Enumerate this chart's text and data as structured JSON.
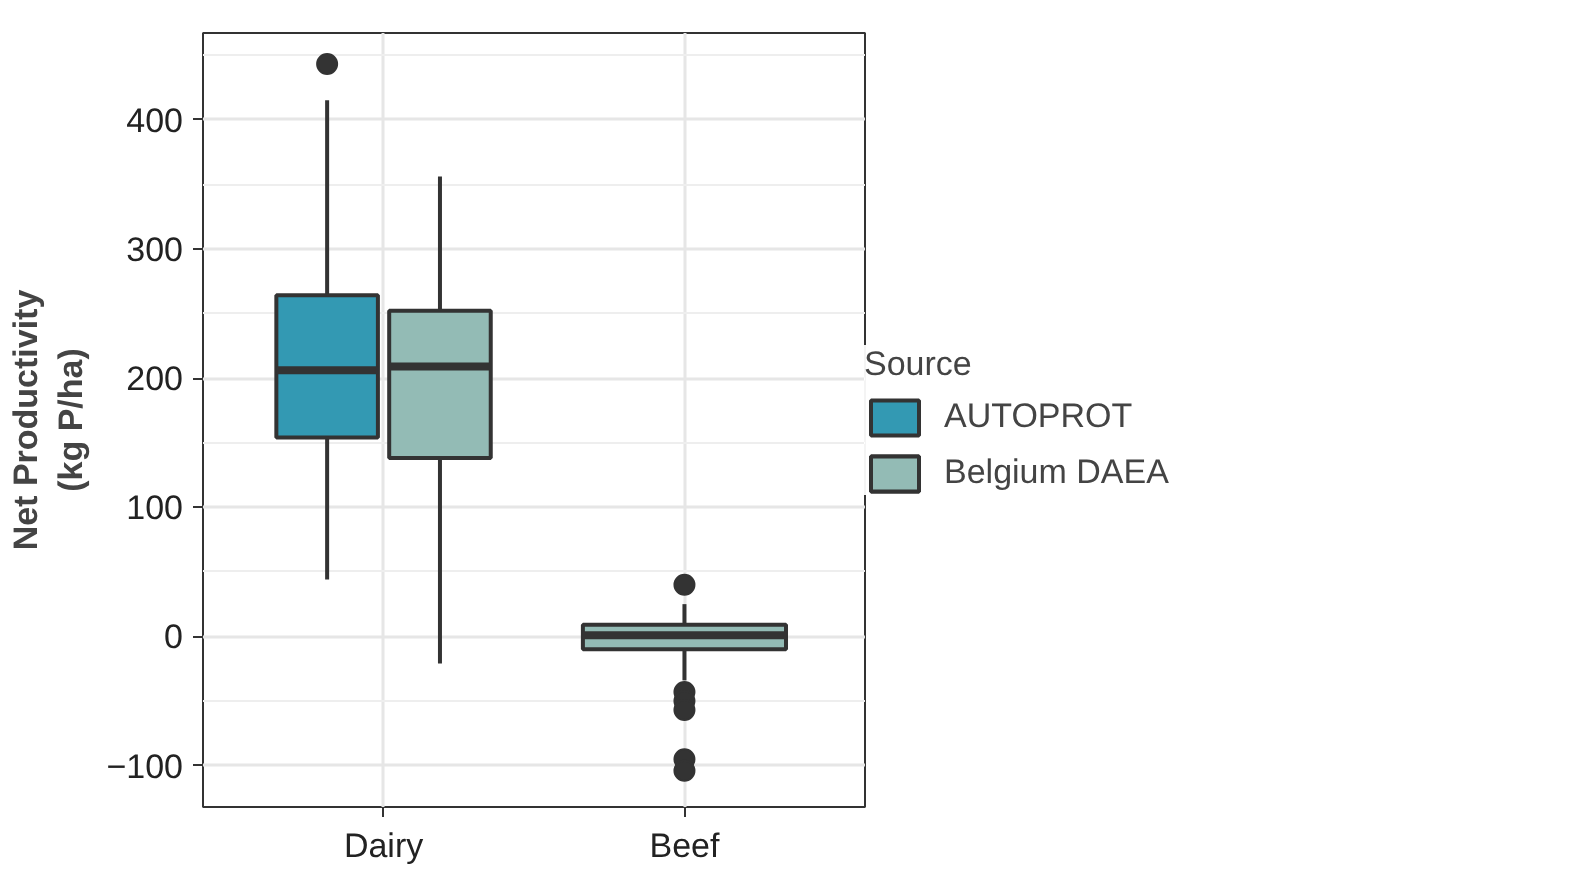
{
  "chart_data": {
    "type": "box",
    "ylabel": "Net Productivity\n(kg P/ha)",
    "legend_title": "Source",
    "categories": [
      "Dairy",
      "Beef"
    ],
    "ylim": [
      -132,
      467
    ],
    "yticks": [
      -100,
      0,
      100,
      200,
      300,
      400
    ],
    "grid": true,
    "legend": "right",
    "series": [
      {
        "name": "AUTOPROT",
        "color": "#3399b3",
        "boxes": [
          {
            "low": 44,
            "q1": 154,
            "median": 206,
            "q3": 264,
            "high": 415,
            "outliers": [
              443
            ]
          },
          null
        ]
      },
      {
        "name": "Belgium DAEA",
        "color": "#93bbb5",
        "boxes": [
          {
            "low": -21,
            "q1": 138,
            "median": 209,
            "q3": 252,
            "high": 356
          },
          {
            "low": -34,
            "q1": -10,
            "median": 1,
            "q3": 9,
            "high": 25,
            "outliers": [
              40,
              -43,
              -50,
              -57,
              -95,
              -104
            ]
          }
        ]
      }
    ]
  }
}
